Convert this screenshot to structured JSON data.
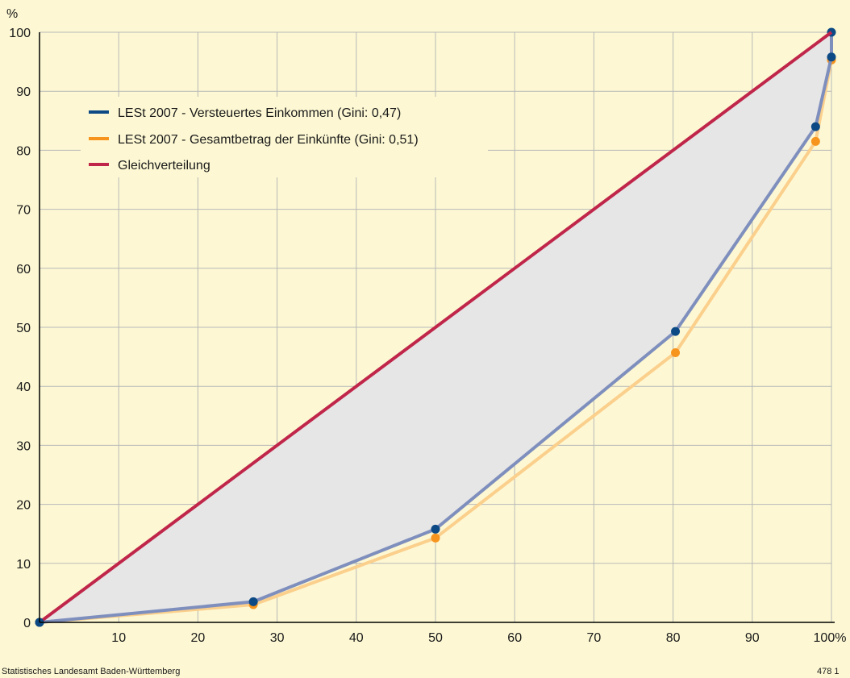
{
  "chart_data": {
    "type": "line",
    "ylabel": "%",
    "xlim": [
      0,
      100
    ],
    "ylim": [
      0,
      100
    ],
    "x_ticks": [
      "10",
      "20",
      "30",
      "40",
      "50",
      "60",
      "70",
      "80",
      "90",
      "100%"
    ],
    "y_ticks": [
      "0",
      "10",
      "20",
      "30",
      "40",
      "50",
      "60",
      "70",
      "80",
      "90",
      "100"
    ],
    "grid": true,
    "legend_position": "top-left",
    "shaded_area": "between Gleichverteilung and LESt 2007 - Versteuertes Einkommen",
    "series": [
      {
        "name": "LESt 2007 - Versteuertes Einkommen (Gini: 0,47)",
        "color": "#0d4a85",
        "line_color": "#7f8fbd",
        "x": [
          0,
          27,
          50,
          80.3,
          98,
          100,
          100
        ],
        "y": [
          0,
          3.5,
          15.8,
          49.3,
          84,
          95.8,
          100
        ]
      },
      {
        "name": "LESt 2007 - Gesamtbetrag der Einkünfte (Gini: 0,51)",
        "color": "#f7941d",
        "line_color": "#fbcf8c",
        "x": [
          0,
          27,
          50,
          80.3,
          98,
          100,
          100
        ],
        "y": [
          0,
          3,
          14.3,
          45.7,
          81.5,
          95.3,
          100
        ]
      },
      {
        "name": "Gleichverteilung",
        "color": "#c0264a",
        "x": [
          0,
          100
        ],
        "y": [
          0,
          100
        ]
      }
    ]
  },
  "footer": {
    "source": "Statistisches Landesamt Baden-Württemberg",
    "id": "478 1"
  }
}
